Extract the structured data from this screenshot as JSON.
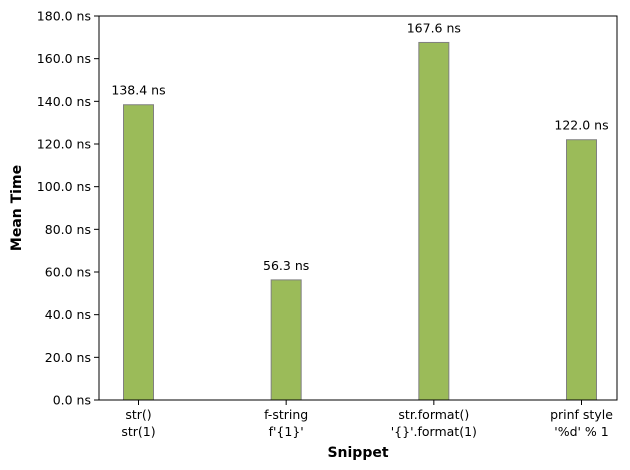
{
  "colors": {
    "bar_fill": "#9bbb59",
    "bar_edge": "#808080",
    "axis": "#000000",
    "background": "#ffffff"
  },
  "chart_data": {
    "type": "bar",
    "title": "",
    "xlabel": "Snippet",
    "ylabel": "Mean Time",
    "categories": [
      {
        "line1": "str()",
        "line2": "str(1)"
      },
      {
        "line1": "f-string",
        "line2": "f'{1}'"
      },
      {
        "line1": "str.format()",
        "line2": "'{}'.format(1)"
      },
      {
        "line1": "prinf style",
        "line2": "'%d' % 1"
      }
    ],
    "values": [
      138.4,
      56.3,
      167.6,
      122.0
    ],
    "value_labels": [
      "138.4 ns",
      "56.3 ns",
      "167.6 ns",
      "122.0 ns"
    ],
    "ylim": [
      0,
      180
    ],
    "yticks": [
      0,
      20,
      40,
      60,
      80,
      100,
      120,
      140,
      160,
      180
    ],
    "ytick_labels": [
      "0.0 ns",
      "20.0 ns",
      "40.0 ns",
      "60.0 ns",
      "80.0 ns",
      "100.0 ns",
      "120.0 ns",
      "140.0 ns",
      "160.0 ns",
      "180.0 ns"
    ],
    "grid": false,
    "legend": "none"
  }
}
